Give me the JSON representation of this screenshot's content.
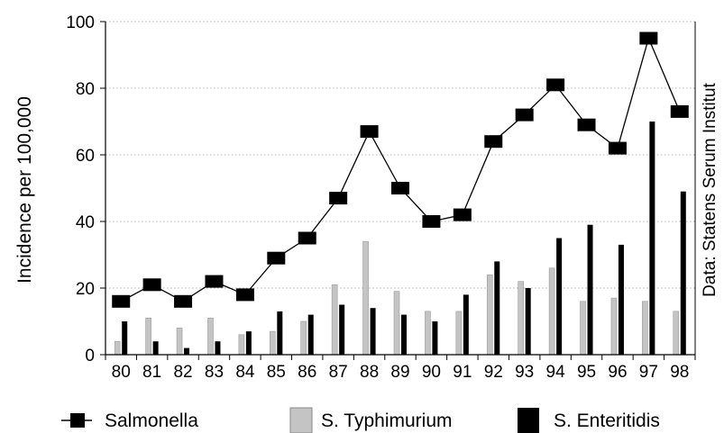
{
  "chart_data": {
    "type": "bar",
    "ylabel": "Incidence per 100,000",
    "source_note": "Data: Statens Serum Institut",
    "ylim": [
      0,
      100
    ],
    "yticks": [
      0,
      20,
      40,
      60,
      80,
      100
    ],
    "grid": true,
    "legend_position": "bottom",
    "categories": [
      "80",
      "81",
      "82",
      "83",
      "84",
      "85",
      "86",
      "87",
      "88",
      "89",
      "90",
      "91",
      "92",
      "93",
      "94",
      "95",
      "96",
      "97",
      "98"
    ],
    "series": [
      {
        "name": "Salmonella",
        "kind": "line",
        "color": "#000000",
        "values": [
          16,
          21,
          16,
          22,
          18,
          29,
          35,
          47,
          67,
          50,
          40,
          42,
          64,
          72,
          81,
          69,
          62,
          95,
          73
        ]
      },
      {
        "name": "S. Typhimurium",
        "kind": "bar",
        "color": "#c4c4c4",
        "values": [
          4,
          11,
          8,
          11,
          6,
          7,
          10,
          21,
          34,
          19,
          13,
          13,
          24,
          22,
          26,
          16,
          17,
          16,
          13
        ]
      },
      {
        "name": "S. Enteritidis",
        "kind": "bar",
        "color": "#000000",
        "values": [
          10,
          4,
          2,
          4,
          7,
          13,
          12,
          15,
          14,
          12,
          10,
          18,
          28,
          20,
          35,
          39,
          33,
          70,
          49
        ]
      }
    ]
  }
}
